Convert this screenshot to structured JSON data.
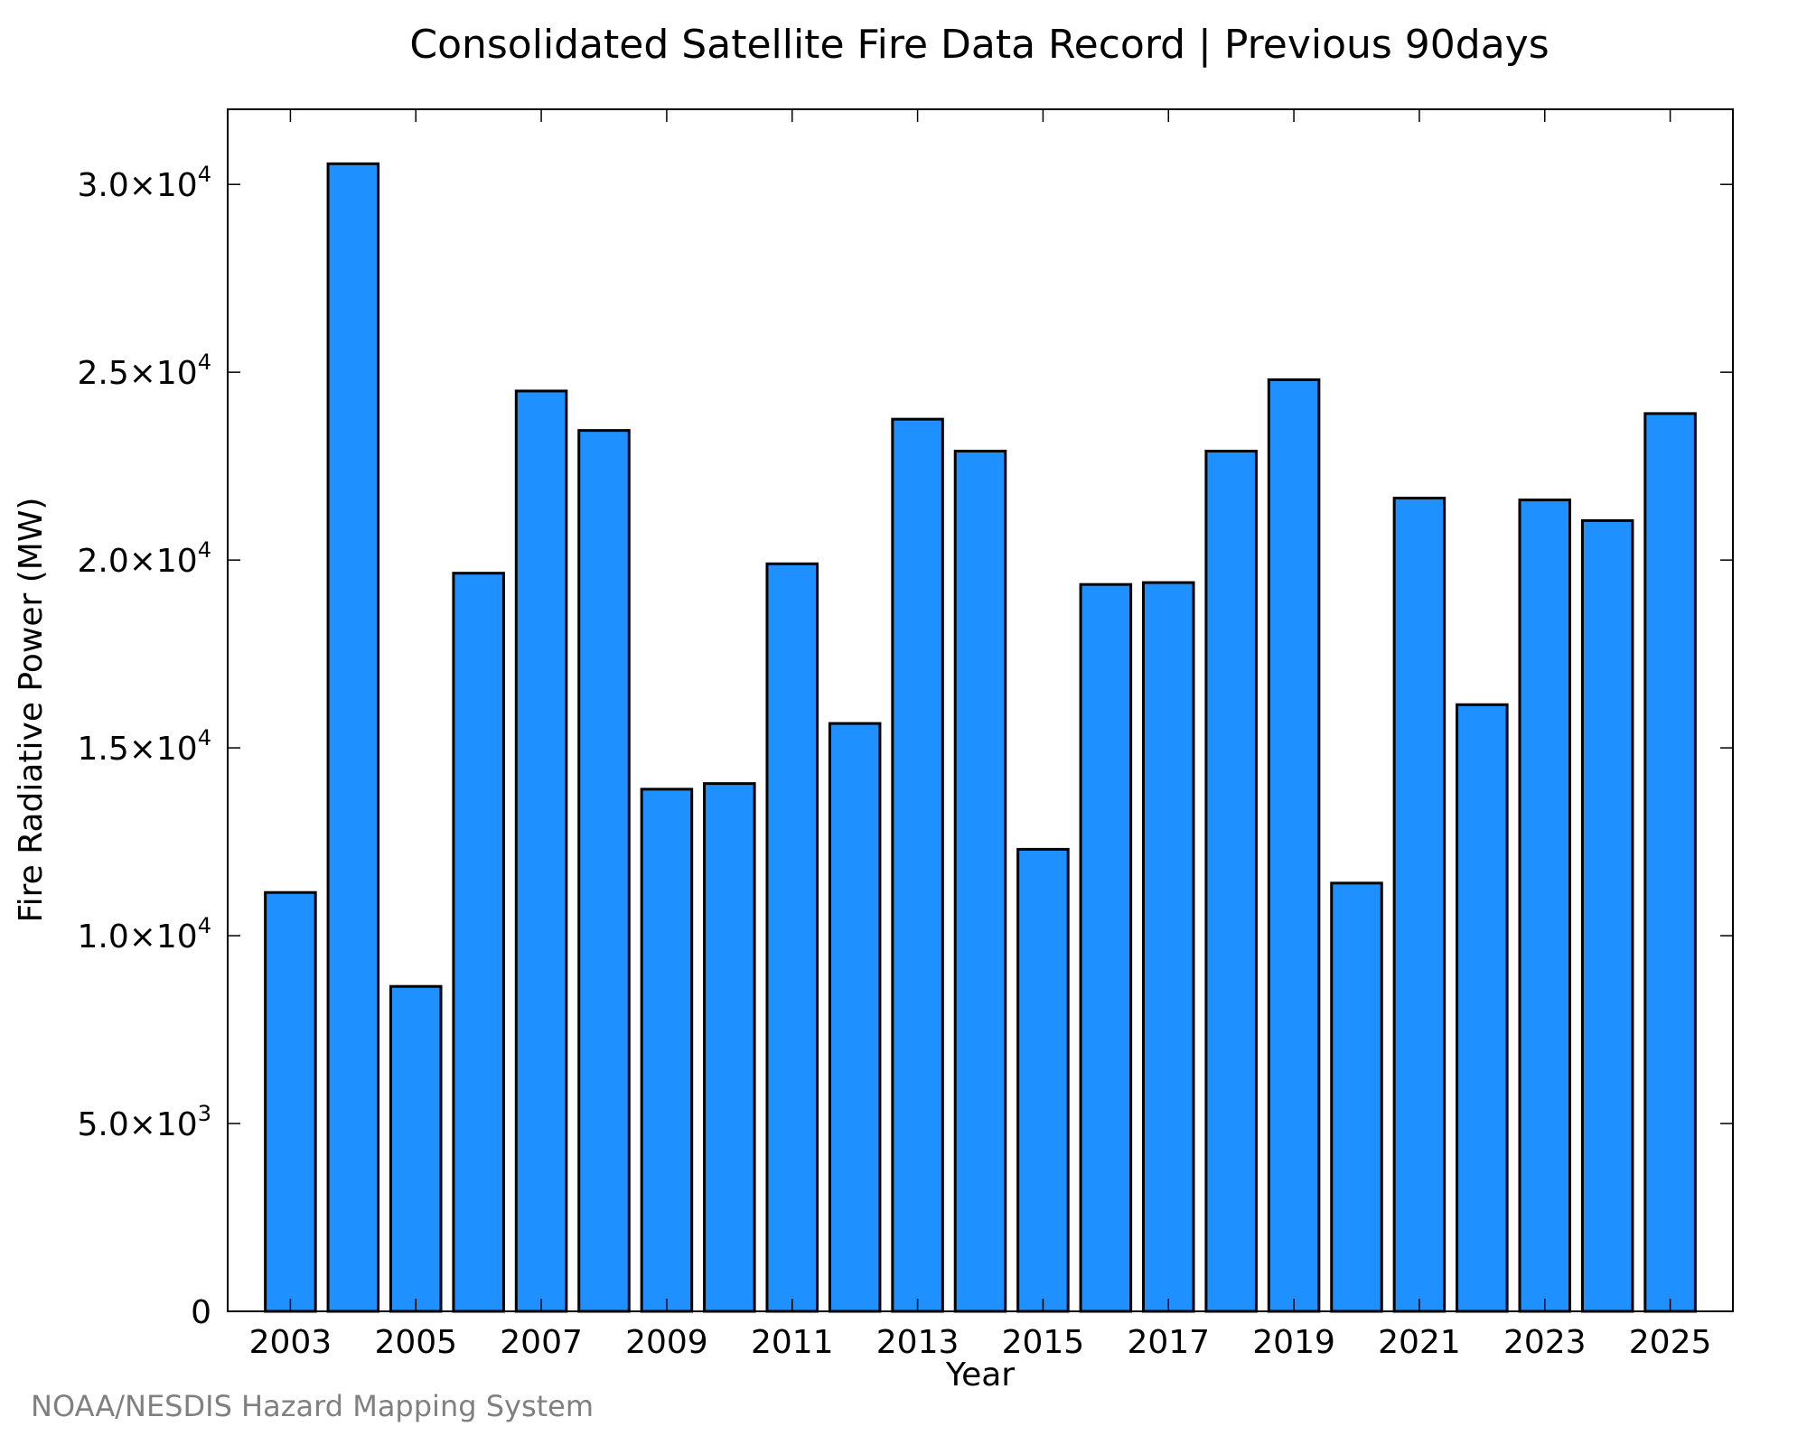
{
  "credit": "NOAA/NESDIS Hazard Mapping System",
  "chart_data": {
    "type": "bar",
    "title": "Consolidated Satellite Fire Data Record | Previous 90days",
    "xlabel": "Year",
    "ylabel": "Fire Radiative Power (MW)",
    "ylim": [
      0,
      32000
    ],
    "grid": false,
    "bar_color": "#1e90ff",
    "bar_edge_color": "#000000",
    "categories": [
      2003,
      2004,
      2005,
      2006,
      2007,
      2008,
      2009,
      2010,
      2011,
      2012,
      2013,
      2014,
      2015,
      2016,
      2017,
      2018,
      2019,
      2020,
      2021,
      2022,
      2023,
      2024,
      2025
    ],
    "values": [
      11150,
      30550,
      8650,
      19650,
      24500,
      23450,
      13900,
      14050,
      19900,
      15650,
      23750,
      22900,
      12300,
      19350,
      19400,
      22900,
      24800,
      11400,
      21650,
      16150,
      21600,
      21050,
      23900
    ],
    "x_tick_labels": [
      "2003",
      "2005",
      "2007",
      "2009",
      "2011",
      "2013",
      "2015",
      "2017",
      "2019",
      "2021",
      "2023",
      "2025"
    ],
    "y_ticks": [
      {
        "value": 0,
        "mant": "0",
        "exp": ""
      },
      {
        "value": 5000,
        "mant": "5.0×10",
        "exp": "3"
      },
      {
        "value": 10000,
        "mant": "1.0×10",
        "exp": "4"
      },
      {
        "value": 15000,
        "mant": "1.5×10",
        "exp": "4"
      },
      {
        "value": 20000,
        "mant": "2.0×10",
        "exp": "4"
      },
      {
        "value": 25000,
        "mant": "2.5×10",
        "exp": "4"
      },
      {
        "value": 30000,
        "mant": "3.0×10",
        "exp": "4"
      }
    ]
  }
}
